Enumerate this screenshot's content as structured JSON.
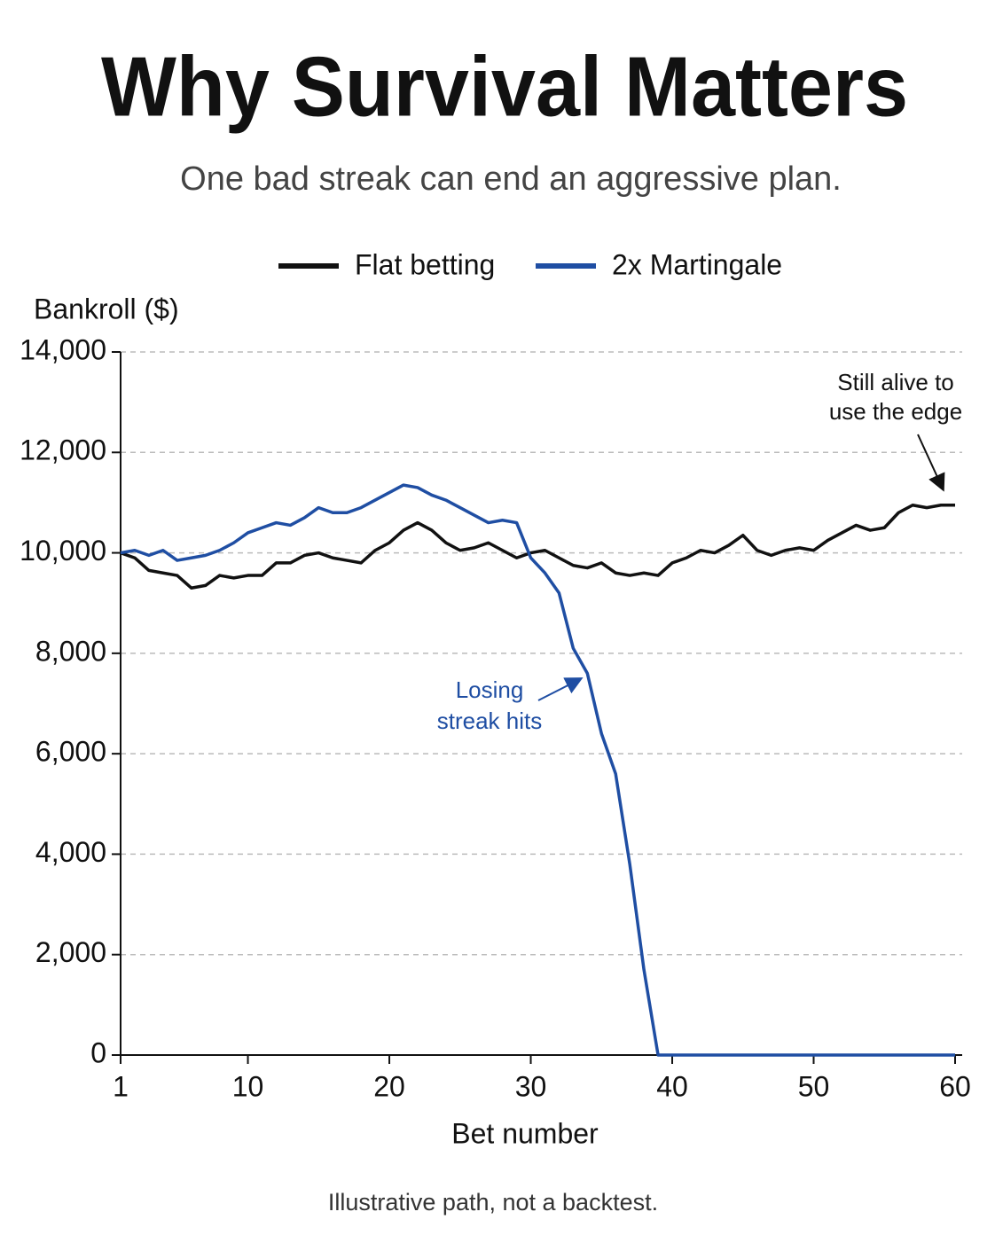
{
  "chart_data": {
    "type": "line",
    "title": "Why Survival Matters",
    "subtitle": "One bad streak can end an aggressive plan.",
    "y_label": "Bankroll ($)",
    "x_label": "Bet number",
    "footnote": "Illustrative path, not a backtest.",
    "x": [
      1,
      2,
      3,
      4,
      5,
      6,
      7,
      8,
      9,
      10,
      11,
      12,
      13,
      14,
      15,
      16,
      17,
      18,
      19,
      20,
      21,
      22,
      23,
      24,
      25,
      26,
      27,
      28,
      29,
      30,
      31,
      32,
      33,
      34,
      35,
      36,
      37,
      38,
      39,
      40,
      41,
      42,
      43,
      44,
      45,
      46,
      47,
      48,
      49,
      50,
      51,
      52,
      53,
      54,
      55,
      56,
      57,
      58,
      59,
      60
    ],
    "series": [
      {
        "name": "Flat betting",
        "color": "#111111",
        "values": [
          10000,
          9900,
          9650,
          9600,
          9550,
          9300,
          9350,
          9550,
          9500,
          9550,
          9550,
          9800,
          9800,
          9950,
          10000,
          9900,
          9850,
          9800,
          10050,
          10200,
          10450,
          10600,
          10450,
          10200,
          10050,
          10100,
          10200,
          10050,
          9900,
          10000,
          10050,
          9900,
          9750,
          9700,
          9800,
          9600,
          9550,
          9600,
          9550,
          9800,
          9900,
          10050,
          10000,
          10150,
          10350,
          10050,
          9950,
          10050,
          10100,
          10050,
          10250,
          10400,
          10550,
          10450,
          10500,
          10800,
          10950,
          10900,
          10950,
          10950
        ]
      },
      {
        "name": "2x Martingale",
        "color": "#1f4ea3",
        "values": [
          10000,
          10050,
          9950,
          10050,
          9850,
          9900,
          9950,
          10050,
          10200,
          10400,
          10500,
          10600,
          10550,
          10700,
          10900,
          10800,
          10800,
          10900,
          11050,
          11200,
          11350,
          11300,
          11150,
          11050,
          10900,
          10750,
          10600,
          10650,
          10600,
          9900,
          9600,
          9200,
          8100,
          7600,
          6400,
          5600,
          3800,
          1700,
          0,
          0,
          0,
          0,
          0,
          0,
          0,
          0,
          0,
          0,
          0,
          0,
          0,
          0,
          0,
          0,
          0,
          0,
          0,
          0,
          0,
          0
        ]
      }
    ],
    "annotations": [
      {
        "lines": [
          "Still alive to",
          "use the edge"
        ],
        "color": "#111111"
      },
      {
        "lines": [
          "Losing",
          "streak hits"
        ],
        "color": "#1f4ea3"
      }
    ],
    "xlim": [
      1,
      60
    ],
    "xticks": [
      1,
      10,
      20,
      30,
      40,
      50,
      60
    ],
    "ylim": [
      0,
      14000
    ],
    "yticks": [
      0,
      {
        "value": 2000,
        "label": "2,000"
      },
      {
        "value": 4000,
        "label": "4,000"
      },
      {
        "value": 6000,
        "label": "6,000"
      },
      {
        "value": 8000,
        "label": "8,000"
      },
      {
        "value": 10000,
        "label": "10,000"
      },
      {
        "value": 12000,
        "label": "12,000"
      },
      {
        "value": 14000,
        "label": "14,000"
      }
    ],
    "grid": true
  }
}
